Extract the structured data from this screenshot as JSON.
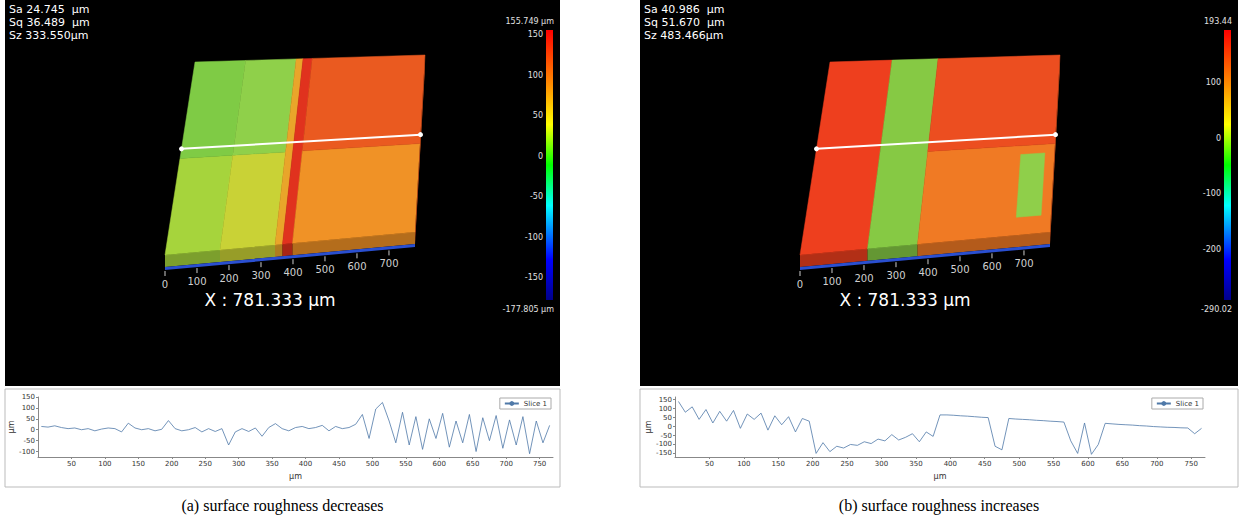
{
  "chart_data": [
    {
      "type": "line",
      "title": "(a) surface roughness decreases",
      "annotations": [
        "Sa 24.745  µm",
        "Sq 36.489  µm",
        "Sz 333.550µm"
      ],
      "surface_xlabel": "X : 781.333 µm",
      "surface_xlim": [
        0,
        781.333
      ],
      "surface_xticks": [
        0,
        100,
        200,
        300,
        400,
        500,
        600,
        700
      ],
      "colorbar_range": [
        -177.805,
        155.749
      ],
      "colorbar_ticks": [
        {
          "value": 155.749,
          "label": "155.749 µm"
        },
        150,
        100,
        50,
        0,
        -50,
        -100,
        -150,
        {
          "value": -177.805,
          "label": "-177.805 µm"
        }
      ],
      "xlabel": "µm",
      "ylabel": "µm",
      "x": [
        5,
        15,
        25,
        35,
        45,
        55,
        65,
        75,
        85,
        95,
        105,
        115,
        125,
        135,
        145,
        155,
        165,
        175,
        185,
        195,
        205,
        215,
        225,
        235,
        245,
        255,
        265,
        275,
        285,
        295,
        305,
        315,
        325,
        335,
        345,
        355,
        365,
        375,
        385,
        395,
        405,
        415,
        425,
        435,
        445,
        455,
        465,
        475,
        485,
        495,
        505,
        515,
        525,
        535,
        545,
        555,
        565,
        575,
        585,
        595,
        605,
        615,
        625,
        635,
        645,
        655,
        665,
        675,
        685,
        695,
        705,
        715,
        725,
        735,
        745,
        755,
        765
      ],
      "series": [
        {
          "name": "Slice 1",
          "color": "#4f79a8",
          "values": [
            15,
            12,
            18,
            10,
            5,
            8,
            0,
            5,
            -5,
            3,
            8,
            5,
            -10,
            30,
            8,
            0,
            5,
            -5,
            2,
            42,
            5,
            -5,
            0,
            10,
            -10,
            5,
            -8,
            5,
            -70,
            -10,
            5,
            -8,
            8,
            -30,
            10,
            28,
            5,
            -5,
            10,
            15,
            5,
            10,
            20,
            -5,
            15,
            5,
            10,
            25,
            70,
            -40,
            95,
            125,
            40,
            -60,
            80,
            -70,
            60,
            -90,
            50,
            -40,
            75,
            -80,
            40,
            -60,
            70,
            -100,
            55,
            -50,
            65,
            -85,
            45,
            -70,
            60,
            -110,
            40,
            -60,
            20
          ]
        }
      ],
      "xlim": [
        0,
        770
      ],
      "xticks": [
        50,
        100,
        150,
        200,
        250,
        300,
        350,
        400,
        450,
        500,
        550,
        600,
        650,
        700,
        750
      ],
      "ylim": [
        -125,
        150
      ],
      "yticks": [
        -100,
        -50,
        0,
        50,
        100,
        150
      ],
      "grid": false,
      "legend": "upper right"
    },
    {
      "type": "line",
      "title": "(b) surface roughness increases",
      "annotations": [
        "Sa 40.986  µm",
        "Sq 51.670  µm",
        "Sz 483.466µm"
      ],
      "surface_xlabel": "X : 781.333 µm",
      "surface_xlim": [
        0,
        781.333
      ],
      "surface_xticks": [
        0,
        100,
        200,
        300,
        400,
        500,
        600,
        700
      ],
      "colorbar_range": [
        -290.02,
        193.44
      ],
      "colorbar_ticks": [
        {
          "value": 193.44,
          "label": "193.44"
        },
        100,
        0,
        -100,
        -200,
        {
          "value": -290.02,
          "label": "-290.02"
        }
      ],
      "xlabel": "µm",
      "ylabel": "µm",
      "x": [
        5,
        15,
        25,
        35,
        45,
        55,
        65,
        75,
        85,
        95,
        105,
        115,
        125,
        135,
        145,
        155,
        165,
        175,
        185,
        195,
        205,
        215,
        225,
        235,
        245,
        255,
        265,
        275,
        285,
        295,
        305,
        315,
        325,
        335,
        345,
        355,
        365,
        375,
        385,
        395,
        405,
        415,
        425,
        435,
        445,
        455,
        465,
        475,
        485,
        495,
        505,
        515,
        525,
        535,
        545,
        555,
        565,
        575,
        585,
        595,
        605,
        615,
        625,
        635,
        645,
        655,
        665,
        675,
        685,
        695,
        705,
        715,
        725,
        735,
        745,
        755,
        765
      ],
      "series": [
        {
          "name": "Slice 1",
          "color": "#4f79a8",
          "values": [
            140,
            80,
            110,
            40,
            95,
            20,
            85,
            30,
            90,
            -10,
            70,
            40,
            75,
            -20,
            60,
            10,
            55,
            -30,
            45,
            30,
            -150,
            -90,
            -140,
            -110,
            -120,
            -100,
            -105,
            -85,
            -95,
            -70,
            -80,
            -45,
            -75,
            -60,
            -40,
            -85,
            -30,
            -55,
            65,
            65,
            63,
            60,
            58,
            55,
            52,
            50,
            -110,
            -130,
            45,
            42,
            40,
            38,
            35,
            33,
            30,
            28,
            25,
            -80,
            -150,
            20,
            -155,
            -100,
            18,
            15,
            12,
            10,
            8,
            5,
            3,
            0,
            -2,
            -4,
            -5,
            -7,
            -8,
            -40,
            -10
          ]
        }
      ],
      "xlim": [
        0,
        770
      ],
      "xticks": [
        50,
        100,
        150,
        200,
        250,
        300,
        350,
        400,
        450,
        500,
        550,
        600,
        650,
        700,
        750
      ],
      "ylim": [
        -170,
        165
      ],
      "yticks": [
        -150,
        -100,
        -50,
        0,
        50,
        100,
        150
      ],
      "grid": false,
      "legend": "upper right"
    }
  ]
}
